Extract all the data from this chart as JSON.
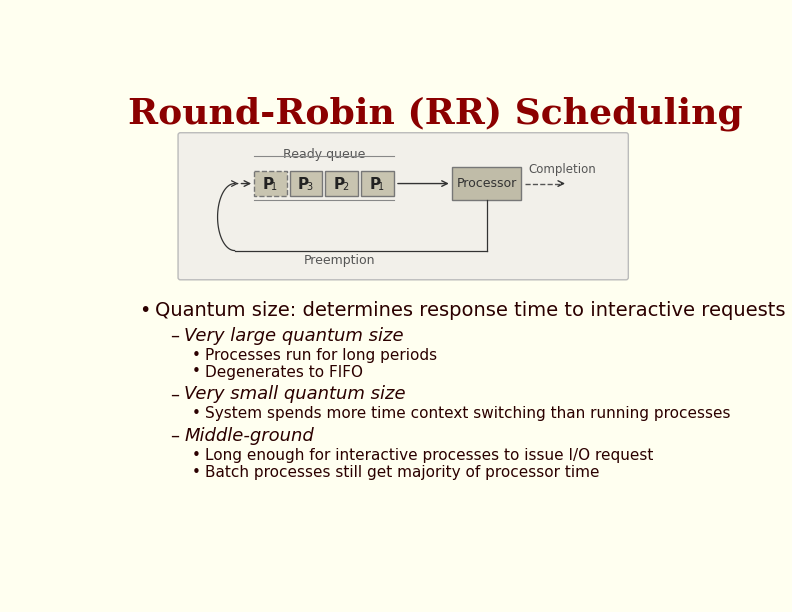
{
  "title": "Round-Robin (RR) Scheduling",
  "title_color": "#8B0000",
  "slide_bg": "#FFFFF0",
  "diagram_bg": "#F2F0EA",
  "text_color": "#2B0000",
  "bullet_color": "#2B0000",
  "box_color": "#C8C4B0",
  "processor_color": "#C0BCA8",
  "queue_label": "Ready queue",
  "preemption_label": "Preemption",
  "completion_label": "Completion",
  "processor_label": "Processor",
  "queue_boxes": [
    "P",
    "P",
    "P",
    "P"
  ],
  "queue_subs": [
    "1",
    "3",
    "2",
    "1"
  ],
  "bullet1": "Quantum size: determines response time to interactive requests",
  "sub1": "Very large quantum size",
  "sub1b1": "Processes run for long periods",
  "sub1b2": "Degenerates to FIFO",
  "sub2": "Very small quantum size",
  "sub2b1": "System spends more time context switching than running processes",
  "sub3": "Middle-ground",
  "sub3b1": "Long enough for interactive processes to issue I/O request",
  "sub3b2": "Batch processes still get majority of processor time"
}
